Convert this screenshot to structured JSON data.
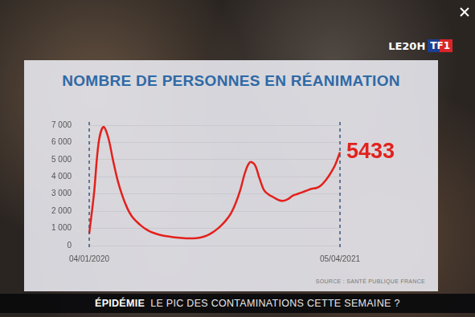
{
  "chart_data": {
    "type": "line",
    "title": "NOMBRE DE PERSONNES EN RÉANIMATION",
    "categories": [
      "04/01/2020",
      null,
      null,
      null,
      null,
      null,
      null,
      null,
      null,
      null,
      null,
      null,
      null,
      null,
      null,
      null,
      null,
      null,
      null,
      null,
      null,
      null,
      null,
      null,
      null,
      null,
      null,
      null,
      null,
      null,
      null,
      null,
      null,
      null,
      null,
      null,
      null,
      null,
      null,
      null,
      null,
      null,
      null,
      null,
      null,
      null,
      null,
      null,
      null,
      null,
      null,
      null,
      null,
      "05/04/2021"
    ],
    "values": [
      700,
      3000,
      6000,
      6900,
      6300,
      5000,
      3800,
      2900,
      2200,
      1700,
      1400,
      1150,
      950,
      800,
      700,
      620,
      560,
      520,
      480,
      450,
      430,
      420,
      420,
      440,
      500,
      600,
      750,
      950,
      1200,
      1500,
      1900,
      2500,
      3300,
      4300,
      4850,
      4700,
      3900,
      3200,
      2950,
      2800,
      2650,
      2600,
      2700,
      2900,
      3000,
      3100,
      3200,
      3300,
      3350,
      3500,
      3800,
      4200,
      4700,
      5433
    ],
    "color": "#e3211c",
    "ylim": [
      0,
      7000
    ],
    "yticks": [
      0,
      {
        "value": 1000,
        "label": "1 000"
      },
      {
        "value": 2000,
        "label": "2 000"
      },
      {
        "value": 3000,
        "label": "3 000"
      },
      {
        "value": 4000,
        "label": "4 000"
      },
      {
        "value": 5000,
        "label": "5 000"
      },
      {
        "value": 6000,
        "label": "6 000"
      },
      {
        "value": 7000,
        "label": "7 000"
      }
    ],
    "grid": true,
    "annotations": [
      {
        "label": "5433",
        "value": 5433
      }
    ],
    "source": "SOURCE : SANTÉ PUBLIQUE FRANCE"
  },
  "broadcast": {
    "program": "LE20H",
    "channel": "TF1",
    "banner_topic": "ÉPIDÉMIE",
    "banner_text": "LE PIC DES CONTAMINATIONS CETTE SEMAINE ?"
  }
}
